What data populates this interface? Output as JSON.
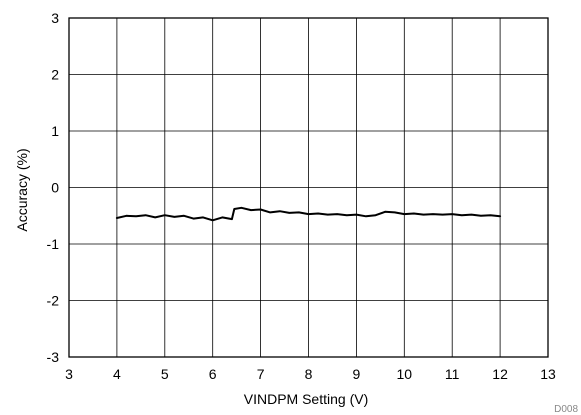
{
  "chart_data": {
    "type": "line",
    "title": "",
    "xlabel": "VINDPM Setting (V)",
    "ylabel": "Accuracy (%)",
    "xlim": [
      3,
      13
    ],
    "ylim": [
      -3,
      3
    ],
    "x_ticks": [
      3,
      4,
      5,
      6,
      7,
      8,
      9,
      10,
      11,
      12,
      13
    ],
    "y_ticks": [
      -3,
      -2,
      -1,
      0,
      1,
      2,
      3
    ],
    "grid": true,
    "line_color": "#000000",
    "series": [
      {
        "x": [
          4.0,
          4.2,
          4.4,
          4.6,
          4.8,
          5.0,
          5.2,
          5.4,
          5.6,
          5.8,
          6.0,
          6.2,
          6.4,
          6.45,
          6.6,
          6.8,
          7.0,
          7.2,
          7.4,
          7.6,
          7.8,
          8.0,
          8.2,
          8.4,
          8.6,
          8.8,
          9.0,
          9.2,
          9.4,
          9.6,
          9.8,
          10.0,
          10.2,
          10.4,
          10.6,
          10.8,
          11.0,
          11.2,
          11.4,
          11.6,
          11.8,
          12.0
        ],
        "y": [
          -0.54,
          -0.5,
          -0.51,
          -0.49,
          -0.53,
          -0.49,
          -0.52,
          -0.5,
          -0.55,
          -0.53,
          -0.58,
          -0.53,
          -0.56,
          -0.38,
          -0.36,
          -0.4,
          -0.39,
          -0.44,
          -0.42,
          -0.45,
          -0.44,
          -0.47,
          -0.46,
          -0.48,
          -0.47,
          -0.49,
          -0.48,
          -0.51,
          -0.49,
          -0.43,
          -0.44,
          -0.47,
          -0.46,
          -0.48,
          -0.47,
          -0.48,
          -0.47,
          -0.49,
          -0.48,
          -0.5,
          -0.49,
          -0.51
        ]
      }
    ]
  },
  "footer_code": "D008"
}
